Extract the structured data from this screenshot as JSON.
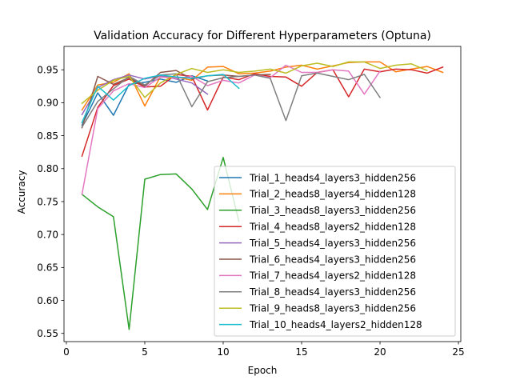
{
  "chart_data": {
    "type": "line",
    "title": "Validation Accuracy for Different Hyperparameters (Optuna)",
    "xlabel": "Epoch",
    "ylabel": "Accuracy",
    "xlim": [
      -0.15,
      25.15
    ],
    "ylim": [
      0.5375,
      0.9855
    ],
    "xticks": [
      "0",
      "5",
      "10",
      "15",
      "20",
      "25"
    ],
    "yticks": [
      "0.55",
      "0.60",
      "0.65",
      "0.70",
      "0.75",
      "0.80",
      "0.85",
      "0.90",
      "0.95"
    ],
    "grid": false,
    "legend_position": "lower-right",
    "series": [
      {
        "name": "Trial_1_heads4_layers3_hidden256",
        "color": "#1f77b4",
        "x": [
          1,
          2,
          3,
          4,
          5,
          6,
          7,
          8,
          9
        ],
        "y": [
          0.866,
          0.915,
          0.881,
          0.928,
          0.931,
          0.936,
          0.931,
          0.941,
          0.933
        ]
      },
      {
        "name": "Trial_2_heads8_layers4_hidden128",
        "color": "#ff7f0e",
        "x": [
          1,
          2,
          3,
          4,
          5,
          6,
          7,
          8,
          9,
          10,
          11,
          12,
          13,
          14,
          15,
          16,
          17,
          18,
          19,
          20,
          21,
          22,
          23,
          24
        ],
        "y": [
          0.889,
          0.927,
          0.931,
          0.944,
          0.895,
          0.94,
          0.939,
          0.934,
          0.954,
          0.955,
          0.944,
          0.945,
          0.948,
          0.954,
          0.957,
          0.951,
          0.956,
          0.961,
          0.962,
          0.962,
          0.947,
          0.951,
          0.955,
          0.946
        ]
      },
      {
        "name": "Trial_3_heads8_layers3_hidden256",
        "color": "#2ca02c",
        "x": [
          1,
          2,
          3,
          4,
          5,
          6,
          7,
          8,
          9,
          10,
          11
        ],
        "y": [
          0.761,
          0.742,
          0.727,
          0.556,
          0.784,
          0.791,
          0.792,
          0.769,
          0.738,
          0.817,
          0.72
        ]
      },
      {
        "name": "Trial_4_heads8_layers2_hidden128",
        "color": "#d62728",
        "x": [
          1,
          2,
          3,
          4,
          5,
          6,
          7,
          8,
          9,
          10,
          11,
          12,
          13,
          14,
          15,
          16,
          17,
          18,
          19,
          20,
          21,
          22,
          23,
          24
        ],
        "y": [
          0.819,
          0.893,
          0.926,
          0.936,
          0.924,
          0.925,
          0.943,
          0.94,
          0.889,
          0.939,
          0.935,
          0.944,
          0.94,
          0.939,
          0.925,
          0.946,
          0.95,
          0.909,
          0.951,
          0.947,
          0.951,
          0.95,
          0.945,
          0.954
        ]
      },
      {
        "name": "Trial_5_heads4_layers3_hidden256",
        "color": "#9467bd",
        "x": [
          1,
          2,
          3,
          4,
          5,
          6,
          7,
          8,
          9
        ],
        "y": [
          0.882,
          0.923,
          0.935,
          0.942,
          0.936,
          0.941,
          0.936,
          0.93,
          0.913
        ]
      },
      {
        "name": "Trial_6_heads4_layers3_hidden256",
        "color": "#8c564b",
        "x": [
          1,
          2,
          3,
          4,
          5,
          6,
          7,
          8,
          9,
          10,
          11,
          12,
          13
        ],
        "y": [
          0.862,
          0.94,
          0.928,
          0.938,
          0.925,
          0.946,
          0.949,
          0.936,
          0.941,
          0.942,
          0.94,
          0.942,
          0.943
        ]
      },
      {
        "name": "Trial_7_heads4_layers2_hidden128",
        "color": "#e377c2",
        "x": [
          1,
          2,
          3,
          4,
          5,
          6,
          7,
          8,
          9,
          10,
          11,
          12,
          13,
          14,
          15,
          16,
          17,
          18,
          19,
          20
        ],
        "y": [
          0.761,
          0.891,
          0.918,
          0.929,
          0.923,
          0.939,
          0.937,
          0.94,
          0.926,
          0.934,
          0.93,
          0.942,
          0.938,
          0.957,
          0.946,
          0.946,
          0.95,
          0.948,
          0.913,
          0.948
        ]
      },
      {
        "name": "Trial_8_heads4_layers3_hidden256",
        "color": "#7f7f7f",
        "x": [
          1,
          2,
          3,
          4,
          5,
          6,
          7,
          8,
          9,
          10,
          11,
          12,
          13,
          14,
          15,
          16,
          17,
          18,
          19,
          20
        ],
        "y": [
          0.863,
          0.902,
          0.921,
          0.94,
          0.927,
          0.942,
          0.944,
          0.894,
          0.932,
          0.938,
          0.94,
          0.942,
          0.937,
          0.873,
          0.941,
          0.945,
          0.94,
          0.935,
          0.943,
          0.908
        ]
      },
      {
        "name": "Trial_9_heads8_layers3_hidden256",
        "color": "#bcbd22",
        "x": [
          1,
          2,
          3,
          4,
          5,
          6,
          7,
          8,
          9,
          10,
          11,
          12,
          13,
          14,
          15,
          16,
          17,
          18,
          19,
          20,
          21,
          22,
          23
        ],
        "y": [
          0.899,
          0.919,
          0.934,
          0.94,
          0.908,
          0.93,
          0.943,
          0.952,
          0.946,
          0.95,
          0.946,
          0.948,
          0.951,
          0.945,
          0.956,
          0.96,
          0.955,
          0.962,
          0.962,
          0.952,
          0.957,
          0.959,
          0.949
        ]
      },
      {
        "name": "Trial_10_heads4_layers2_hidden128",
        "color": "#17becf",
        "x": [
          1,
          2,
          3,
          4,
          5,
          6,
          7,
          8,
          9,
          10,
          11
        ],
        "y": [
          0.87,
          0.925,
          0.904,
          0.926,
          0.937,
          0.942,
          0.939,
          0.937,
          0.941,
          0.943,
          0.922
        ]
      }
    ]
  }
}
